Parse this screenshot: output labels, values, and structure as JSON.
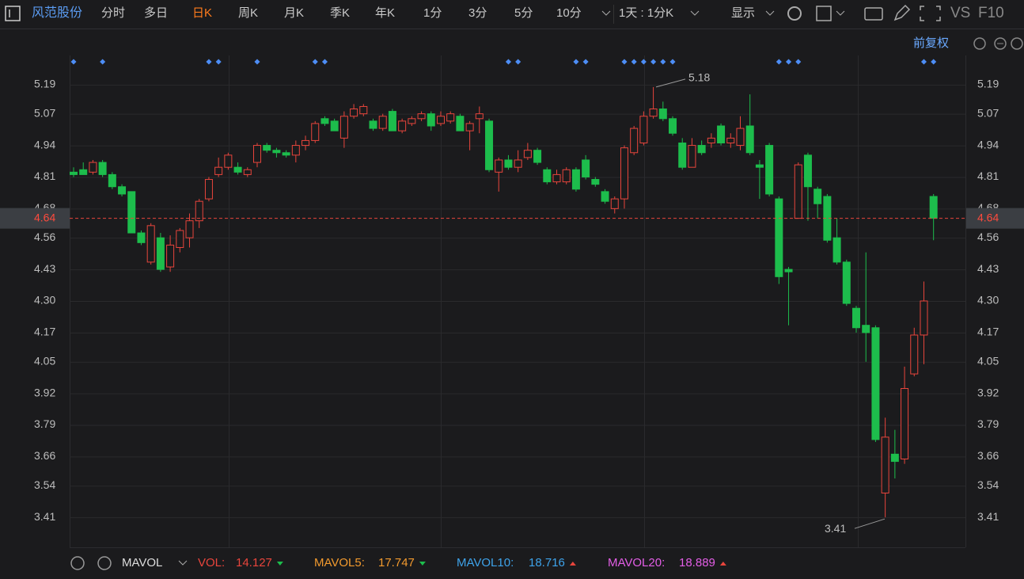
{
  "toolbar": {
    "stock": "风范股份",
    "tabs": [
      "分时",
      "多日",
      "日K",
      "周K",
      "月K",
      "季K",
      "年K",
      "1分",
      "3分",
      "5分",
      "10分"
    ],
    "period": "1天 : 1分K",
    "display": "显示",
    "vs": "VS",
    "f10": "F10"
  },
  "adjust": "前复权",
  "indicator": {
    "name": "MAVOL",
    "items": [
      {
        "label": "VOL:",
        "value": 14.127,
        "color": "#e8453c"
      },
      {
        "label": "MAVOL5:",
        "value": 17.747,
        "color": "#f29a2e"
      },
      {
        "label": "MAVOL10:",
        "value": 18.716,
        "color": "#3ea3ea"
      },
      {
        "label": "MAVOL20:",
        "value": 18.889,
        "color": "#e35ee6"
      }
    ]
  },
  "chart_data": {
    "type": "candlestick",
    "ylim": [
      3.29,
      5.31
    ],
    "yticks": [
      5.19,
      5.07,
      4.94,
      4.81,
      4.68,
      4.56,
      4.43,
      {
        "value": 4.3,
        "label": "4.30"
      },
      4.17,
      4.05,
      3.92,
      3.79,
      3.66,
      3.54,
      3.41
    ],
    "grid": true,
    "up_color": "#e8453c",
    "down_color": "#1dbd4c",
    "last_price": 4.64,
    "high_label": 5.18,
    "low_label": 3.41,
    "open": [
      4.83,
      4.84,
      4.83,
      4.87,
      4.82,
      4.77,
      4.75,
      4.58,
      4.46,
      4.56,
      4.44,
      4.52,
      4.56,
      4.63,
      4.72,
      4.82,
      4.85,
      4.85,
      4.82,
      4.87,
      4.94,
      4.92,
      4.91,
      4.9,
      4.94,
      4.96,
      5.05,
      5.04,
      4.97,
      5.06,
      5.07,
      5.04,
      5.01,
      5.08,
      5.0,
      5.03,
      5.05,
      5.07,
      5.03,
      5.04,
      5.06,
      5.0,
      5.05,
      5.04,
      4.83,
      4.88,
      4.85,
      4.89,
      4.92,
      4.84,
      4.79,
      4.79,
      4.84,
      4.88,
      4.8,
      4.75,
      4.68,
      4.72,
      4.91,
      4.95,
      5.06,
      5.09,
      5.05,
      4.95,
      4.85,
      4.94,
      4.95,
      5.02,
      4.95,
      4.94,
      5.02,
      4.86,
      4.94,
      4.72,
      4.43,
      4.64,
      4.9,
      4.76,
      4.73,
      4.56,
      4.46,
      4.27,
      4.2,
      4.19,
      3.51,
      3.67,
      3.65,
      4.0,
      4.16,
      4.73
    ],
    "high": [
      4.85,
      4.87,
      4.88,
      4.88,
      4.83,
      4.78,
      4.75,
      4.59,
      4.62,
      4.58,
      4.57,
      4.6,
      4.66,
      4.72,
      4.81,
      4.89,
      4.91,
      4.87,
      4.85,
      4.95,
      4.95,
      4.93,
      4.92,
      4.96,
      4.98,
      5.04,
      5.06,
      5.05,
      5.08,
      5.11,
      5.11,
      5.05,
      5.07,
      5.09,
      5.05,
      5.06,
      5.08,
      5.08,
      5.08,
      5.08,
      5.07,
      5.04,
      5.1,
      5.05,
      4.89,
      4.9,
      4.92,
      4.95,
      4.93,
      4.85,
      4.84,
      4.85,
      4.85,
      4.9,
      4.81,
      4.76,
      4.73,
      4.94,
      5.02,
      5.08,
      5.18,
      5.12,
      5.06,
      4.97,
      4.97,
      4.96,
      4.99,
      5.03,
      4.99,
      5.06,
      5.15,
      4.88,
      4.95,
      4.73,
      4.44,
      4.87,
      4.91,
      4.77,
      4.74,
      4.64,
      4.47,
      4.28,
      4.5,
      4.2,
      3.82,
      3.77,
      4.03,
      4.19,
      4.38,
      4.74
    ],
    "low": [
      4.81,
      4.82,
      4.82,
      4.81,
      4.76,
      4.73,
      4.58,
      4.53,
      4.45,
      4.42,
      4.42,
      4.5,
      4.52,
      4.6,
      4.71,
      4.81,
      4.84,
      4.82,
      4.81,
      4.85,
      4.91,
      4.89,
      4.89,
      4.87,
      4.92,
      4.95,
      5.02,
      5.0,
      4.93,
      5.05,
      5.06,
      5.0,
      5.0,
      5.0,
      4.99,
      5.02,
      5.04,
      5.0,
      5.02,
      5.03,
      5.0,
      4.92,
      4.99,
      4.83,
      4.75,
      4.84,
      4.83,
      4.88,
      4.86,
      4.78,
      4.78,
      4.78,
      4.75,
      4.8,
      4.77,
      4.7,
      4.66,
      4.68,
      4.9,
      4.94,
      5.05,
      5.04,
      4.98,
      4.84,
      4.85,
      4.9,
      4.93,
      4.94,
      4.93,
      4.92,
      4.9,
      4.72,
      4.73,
      4.37,
      4.2,
      4.64,
      4.63,
      4.64,
      4.54,
      4.45,
      4.28,
      4.17,
      4.05,
      3.72,
      3.41,
      3.57,
      3.63,
      3.99,
      4.04,
      4.55
    ],
    "close": [
      4.82,
      4.82,
      4.87,
      4.82,
      4.77,
      4.74,
      4.58,
      4.54,
      4.61,
      4.43,
      4.53,
      4.59,
      4.63,
      4.71,
      4.8,
      4.85,
      4.9,
      4.83,
      4.84,
      4.94,
      4.92,
      4.91,
      4.9,
      4.94,
      4.96,
      5.03,
      5.03,
      5.0,
      5.06,
      5.09,
      5.1,
      5.01,
      5.06,
      5.0,
      5.04,
      5.05,
      5.07,
      5.02,
      5.06,
      5.07,
      5.0,
      5.03,
      5.07,
      4.84,
      4.88,
      4.85,
      4.88,
      4.92,
      4.87,
      4.79,
      4.82,
      4.84,
      4.76,
      4.81,
      4.78,
      4.71,
      4.72,
      4.93,
      5.01,
      5.06,
      5.09,
      5.05,
      4.99,
      4.85,
      4.94,
      4.91,
      4.97,
      4.95,
      4.97,
      5.01,
      4.91,
      4.85,
      4.74,
      4.4,
      4.42,
      4.86,
      4.77,
      4.7,
      4.55,
      4.46,
      4.29,
      4.19,
      4.17,
      3.73,
      3.74,
      3.64,
      3.94,
      4.16,
      4.3,
      4.64
    ]
  }
}
